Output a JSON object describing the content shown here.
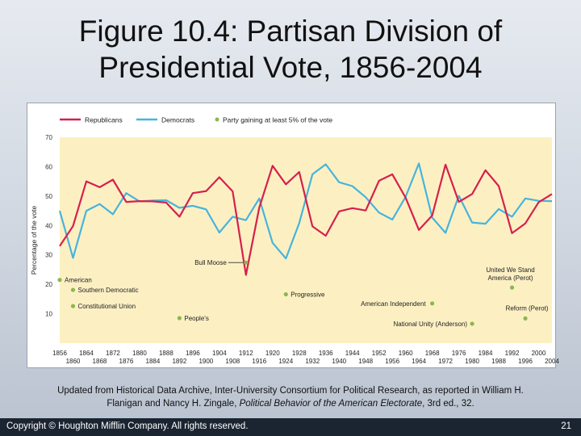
{
  "title_line1": "Figure 10.4: Partisan Division of",
  "title_line2": "Presidential Vote, 1856-2004",
  "source_line1": "Updated from Historical Data Archive, Inter-University Consortium for Political Research, as reported in William H.",
  "source_line2_prefix": "Flanigan and Nancy H. Zingale, ",
  "source_line2_italic": "Political Behavior of the American Electorate",
  "source_line2_suffix": ", 3rd ed., 32.",
  "footer": {
    "copyright": "Copyright © Houghton Mifflin Company. All rights reserved.",
    "page_number": "21"
  },
  "colors": {
    "republicans": "#d6204c",
    "democrats": "#47b4dc",
    "third_party": "#8ab84e",
    "plot_bg": "#fcf0c3"
  },
  "chart_data": {
    "type": "line",
    "title": "",
    "xlabel": "",
    "ylabel": "Percentage of the vote",
    "ylim": [
      0,
      70
    ],
    "yticks": [
      10,
      20,
      30,
      40,
      50,
      60,
      70
    ],
    "xlim": [
      1856,
      2004
    ],
    "xticks_top": [
      "1856",
      "1864",
      "1872",
      "1880",
      "1888",
      "1896",
      "1904",
      "1912",
      "1920",
      "1928",
      "1936",
      "1944",
      "1952",
      "1960",
      "1968",
      "1976",
      "1984",
      "1992",
      "2000"
    ],
    "xticks_bottom": [
      "1860",
      "1868",
      "1876",
      "1884",
      "1892",
      "1900",
      "1908",
      "1916",
      "1924",
      "1932",
      "1940",
      "1948",
      "1956",
      "1964",
      "1972",
      "1980",
      "1988",
      "1996",
      "2004"
    ],
    "legend": [
      "Republicans",
      "Democrats",
      "Party gaining at least 5% of the vote"
    ],
    "grid": false,
    "x": [
      1856,
      1860,
      1864,
      1868,
      1872,
      1876,
      1880,
      1884,
      1888,
      1892,
      1896,
      1900,
      1904,
      1908,
      1912,
      1916,
      1920,
      1924,
      1928,
      1932,
      1936,
      1940,
      1944,
      1948,
      1952,
      1956,
      1960,
      1964,
      1968,
      1972,
      1976,
      1980,
      1984,
      1988,
      1992,
      1996,
      2000,
      2004
    ],
    "series": [
      {
        "name": "Republicans",
        "values": [
          33,
          39.8,
          55,
          53,
          55.6,
          48,
          48.3,
          48.2,
          47.8,
          43,
          51,
          51.7,
          56.4,
          51.6,
          23.2,
          46.1,
          60.3,
          54,
          58.2,
          39.7,
          36.5,
          44.8,
          45.9,
          45.1,
          55.2,
          57.4,
          49.5,
          38.5,
          43.4,
          60.7,
          48,
          50.7,
          58.8,
          53.4,
          37.4,
          40.7,
          47.9,
          50.7
        ]
      },
      {
        "name": "Democrats",
        "values": [
          45,
          29,
          45,
          47.3,
          43.8,
          51,
          48.2,
          48.5,
          48.6,
          46,
          46.7,
          45.5,
          37.6,
          43,
          41.8,
          49.2,
          34.1,
          28.8,
          40.8,
          57.4,
          60.8,
          54.7,
          53.4,
          49.6,
          44.4,
          42,
          49.7,
          61.1,
          42.7,
          37.5,
          50.1,
          41,
          40.6,
          45.6,
          43,
          49.2,
          48.4,
          48.3
        ]
      },
      {
        "name": "Party gaining at least 5% of the vote",
        "type": "scatter",
        "points": [
          {
            "label": "American",
            "x": 1856,
            "y": 21.5
          },
          {
            "label": "Southern Democratic",
            "x": 1860,
            "y": 18.1
          },
          {
            "label": "Constitutional Union",
            "x": 1860,
            "y": 12.6
          },
          {
            "label": "People's",
            "x": 1892,
            "y": 8.5
          },
          {
            "label": "Bull Moose",
            "x": 1912,
            "y": 27.4
          },
          {
            "label": "Progressive",
            "x": 1924,
            "y": 16.6
          },
          {
            "label": "American Independent",
            "x": 1968,
            "y": 13.5
          },
          {
            "label": "National Unity (Anderson)",
            "x": 1980,
            "y": 6.6
          },
          {
            "label": "United We Stand America (Perot)",
            "x": 1992,
            "y": 18.9
          },
          {
            "label": "Reform (Perot)",
            "x": 1996,
            "y": 8.4
          }
        ]
      }
    ]
  }
}
